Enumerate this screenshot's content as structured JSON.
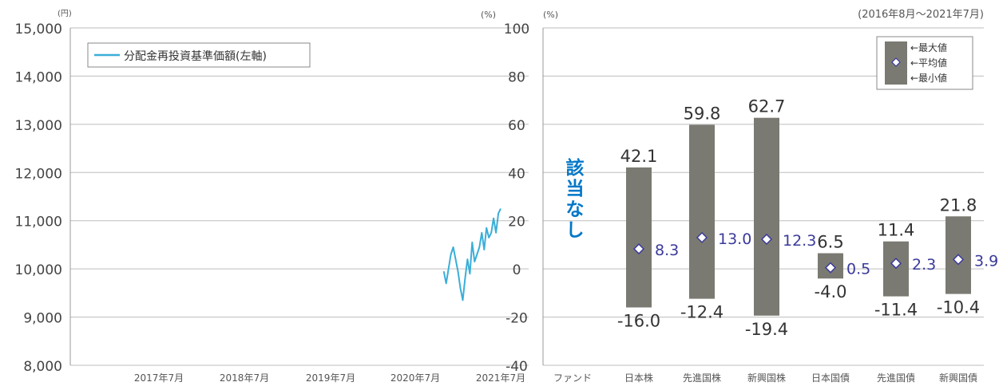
{
  "chart_data": [
    {
      "type": "line",
      "title": "",
      "ylabel_unit": "(円)",
      "ylim": [
        8000,
        15000
      ],
      "yticks": [
        "8,000",
        "9,000",
        "10,000",
        "11,000",
        "12,000",
        "13,000",
        "14,000",
        "15,000"
      ],
      "ytick_values": [
        8000,
        9000,
        10000,
        11000,
        12000,
        13000,
        14000,
        15000
      ],
      "x_categories": [
        "2017年7月",
        "2018年7月",
        "2019年7月",
        "2020年7月",
        "2021年7月"
      ],
      "grid": true,
      "legend": {
        "position": "top-left",
        "label": "分配金再投資基準価額(左軸)",
        "color": "#3aaed8"
      },
      "series": [
        {
          "name": "分配金再投資基準価額(左軸)",
          "color": "#3aaed8",
          "x": [
            "2020-11",
            "2020-11",
            "2020-12",
            "2020-12",
            "2021-01",
            "2021-01",
            "2021-01",
            "2021-02",
            "2021-02",
            "2021-02",
            "2021-03",
            "2021-03",
            "2021-04",
            "2021-04",
            "2021-04",
            "2021-05",
            "2021-05",
            "2021-05",
            "2021-06",
            "2021-06",
            "2021-06",
            "2021-07"
          ],
          "values": [
            9950,
            9700,
            10300,
            10450,
            9950,
            9600,
            9350,
            9800,
            10200,
            9900,
            10550,
            10150,
            10450,
            10750,
            10400,
            10850,
            10650,
            10750,
            11050,
            10750,
            11150,
            11250
          ]
        }
      ]
    },
    {
      "type": "bar",
      "subtype": "range",
      "title": "(2016年8月〜2021年7月)",
      "ylabel_unit_left": "(%)",
      "ylabel_unit_right": "(%)",
      "ylim": [
        -40,
        100
      ],
      "yticks": [
        "-40",
        "-20",
        "0",
        "20",
        "40",
        "60",
        "80",
        "100"
      ],
      "ytick_values": [
        -40,
        -20,
        0,
        20,
        40,
        60,
        80,
        100
      ],
      "categories": [
        "ファンド",
        "日本株",
        "先進国株",
        "新興国株",
        "日本国債",
        "先進国債",
        "新興国債"
      ],
      "max": [
        null,
        42.1,
        59.8,
        62.7,
        6.5,
        11.4,
        21.8
      ],
      "avg": [
        null,
        8.3,
        13.0,
        12.3,
        0.5,
        2.3,
        3.9
      ],
      "min": [
        null,
        -16.0,
        -12.4,
        -19.4,
        -4.0,
        -11.4,
        -10.4
      ],
      "max_labels": [
        "",
        "42.1",
        "59.8",
        "62.7",
        "6.5",
        "11.4",
        "21.8"
      ],
      "avg_labels": [
        "",
        "8.3",
        "13.0",
        "12.3",
        "0.5",
        "2.3",
        "3.9"
      ],
      "min_labels": [
        "",
        "-16.0",
        "-12.4",
        "-19.4",
        "-4.0",
        "-11.4",
        "-10.4"
      ],
      "fund_note": "該当なし",
      "grid": true,
      "legend": {
        "position": "top-right",
        "max_label": "←最大値",
        "avg_label": "←平均値",
        "min_label": "←最小値"
      },
      "colors": {
        "bar": "#7a7a72",
        "avg_marker": "#ffffff",
        "avg_text": "#3a3a9a",
        "fund_note": "#0077c8",
        "text": "#333333"
      }
    }
  ]
}
